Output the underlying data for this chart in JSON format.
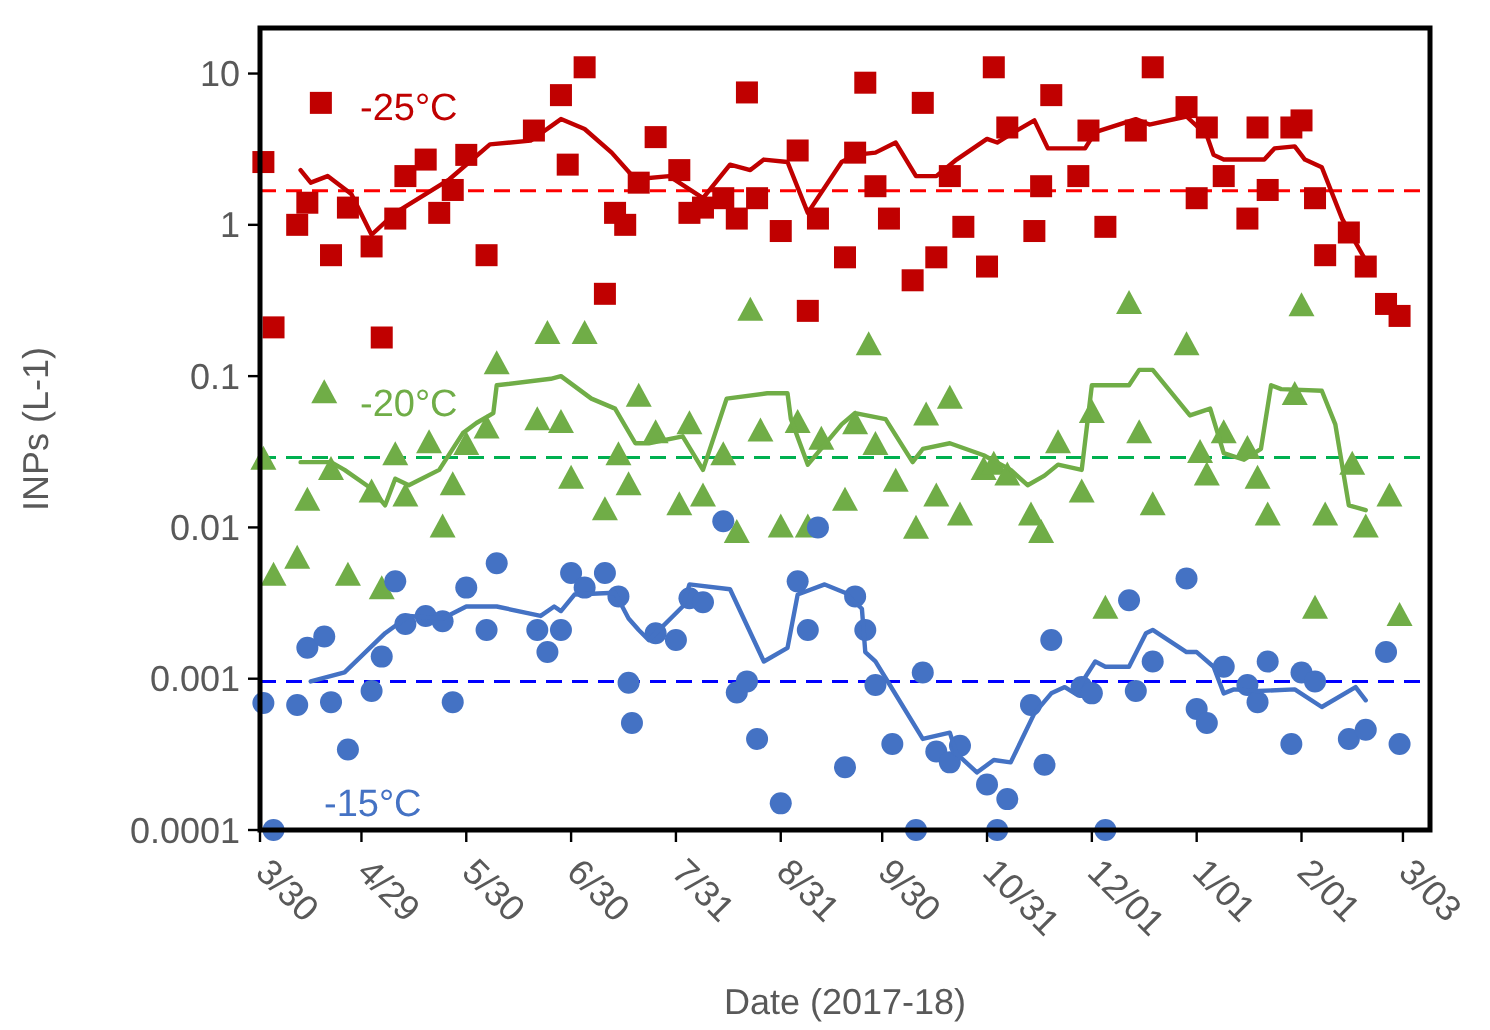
{
  "chart_data": {
    "type": "scatter",
    "xlabel": "Date (2017-18)",
    "ylabel": "INPs (L-1)",
    "log": "y",
    "grid": false,
    "xlim": [
      "2017-03-30",
      "2018-03-11"
    ],
    "xticks": [
      {
        "value": "2017-03-30",
        "label": "3/30"
      },
      {
        "value": "2017-04-29",
        "label": "4/29"
      },
      {
        "value": "2017-05-30",
        "label": "5/30"
      },
      {
        "value": "2017-06-30",
        "label": "6/30"
      },
      {
        "value": "2017-07-31",
        "label": "7/31"
      },
      {
        "value": "2017-08-31",
        "label": "8/31"
      },
      {
        "value": "2017-09-30",
        "label": "9/30"
      },
      {
        "value": "2017-10-31",
        "label": "10/31"
      },
      {
        "value": "2017-12-01",
        "label": "12/01"
      },
      {
        "value": "2018-01-01",
        "label": "1/01"
      },
      {
        "value": "2018-02-01",
        "label": "2/01"
      },
      {
        "value": "2018-03-03",
        "label": "3/03"
      }
    ],
    "ylim": [
      0.0001,
      20
    ],
    "yticks": [
      0.0001,
      0.001,
      0.01,
      0.1,
      1,
      10
    ],
    "ref_lines": [
      {
        "axis": "y",
        "value": 1.68,
        "color": "#ff0000",
        "line_style": "dashed"
      },
      {
        "axis": "y",
        "value": 0.029,
        "color": "#00b050",
        "line_style": "dashed"
      },
      {
        "axis": "y",
        "value": 0.00096,
        "color": "#0000ff",
        "line_style": "dashed"
      }
    ],
    "series": [
      {
        "name": "-25°C",
        "marker": "square",
        "color": "#c00000",
        "x": [
          "2017-03-31",
          "2017-04-03",
          "2017-04-10",
          "2017-04-13",
          "2017-04-17",
          "2017-04-20",
          "2017-04-25",
          "2017-05-02",
          "2017-05-05",
          "2017-05-09",
          "2017-05-12",
          "2017-05-18",
          "2017-05-22",
          "2017-05-26",
          "2017-05-30",
          "2017-06-05",
          "2017-06-19",
          "2017-06-27",
          "2017-06-29",
          "2017-07-04",
          "2017-07-10",
          "2017-07-13",
          "2017-07-16",
          "2017-07-20",
          "2017-07-25",
          "2017-08-01",
          "2017-08-04",
          "2017-08-08",
          "2017-08-14",
          "2017-08-18",
          "2017-08-21",
          "2017-08-24",
          "2017-08-31",
          "2017-09-05",
          "2017-09-08",
          "2017-09-11",
          "2017-09-19",
          "2017-09-22",
          "2017-09-25",
          "2017-09-28",
          "2017-10-02",
          "2017-10-09",
          "2017-10-12",
          "2017-10-16",
          "2017-10-20",
          "2017-10-24",
          "2017-10-31",
          "2017-11-02",
          "2017-11-06",
          "2017-11-14",
          "2017-11-16",
          "2017-11-19",
          "2017-11-27",
          "2017-11-30",
          "2017-12-05",
          "2017-12-14",
          "2017-12-19",
          "2017-12-29",
          "2018-01-01",
          "2018-01-04",
          "2018-01-09",
          "2018-01-16",
          "2018-01-19",
          "2018-01-22",
          "2018-01-29",
          "2018-02-01",
          "2018-02-05",
          "2018-02-08",
          "2018-02-15",
          "2018-02-20",
          "2018-02-26",
          "2018-03-02"
        ],
        "values": [
          2.6,
          0.21,
          1.0,
          1.4,
          6.4,
          0.63,
          1.3,
          0.72,
          0.18,
          1.1,
          2.1,
          2.7,
          1.2,
          1.7,
          2.9,
          0.63,
          4.2,
          7.2,
          2.5,
          11,
          0.35,
          1.2,
          1.0,
          1.9,
          3.8,
          2.3,
          1.2,
          1.3,
          1.5,
          1.1,
          7.5,
          1.5,
          0.91,
          3.1,
          0.27,
          1.1,
          0.61,
          3.0,
          8.7,
          1.8,
          1.1,
          0.43,
          6.4,
          0.61,
          2.1,
          0.97,
          0.53,
          11,
          4.4,
          0.91,
          1.8,
          7.2,
          2.1,
          4.2,
          0.97,
          4.2,
          11,
          6.0,
          1.5,
          4.4,
          2.1,
          1.1,
          4.4,
          1.7,
          4.4,
          4.9,
          1.5,
          0.63,
          0.89,
          0.53,
          0.3,
          0.25
        ]
      },
      {
        "type": "line",
        "marker": "none",
        "color": "#c00000",
        "x": [
          "2017-04-11",
          "2017-04-14",
          "2017-04-19",
          "2017-04-26",
          "2017-05-02",
          "2017-05-09",
          "2017-05-25",
          "2017-06-06",
          "2017-06-18",
          "2017-06-27",
          "2017-07-04",
          "2017-07-12",
          "2017-07-19",
          "2017-07-29",
          "2017-08-08",
          "2017-08-16",
          "2017-08-22",
          "2017-08-26",
          "2017-09-02",
          "2017-09-08",
          "2017-09-18",
          "2017-09-22",
          "2017-09-28",
          "2017-10-04",
          "2017-10-10",
          "2017-10-16",
          "2017-10-22",
          "2017-10-31",
          "2017-11-03",
          "2017-11-08",
          "2017-11-14",
          "2017-11-18",
          "2017-11-29",
          "2017-12-02",
          "2017-12-14",
          "2017-12-18",
          "2017-12-29",
          "2018-01-04",
          "2018-01-06",
          "2018-01-09",
          "2018-01-21",
          "2018-01-24",
          "2018-01-30",
          "2018-02-02",
          "2018-02-07",
          "2018-02-13",
          "2018-02-20"
        ],
        "values": [
          2.3,
          1.9,
          2.1,
          1.6,
          0.86,
          1.2,
          2.0,
          3.4,
          3.6,
          5.0,
          4.3,
          3.0,
          2.0,
          2.1,
          1.5,
          2.5,
          2.3,
          2.7,
          2.6,
          1.2,
          2.6,
          2.9,
          3.0,
          3.5,
          2.1,
          2.1,
          2.7,
          3.7,
          3.5,
          4.1,
          4.9,
          3.2,
          3.2,
          4.1,
          5.0,
          4.6,
          5.2,
          3.9,
          2.9,
          2.7,
          2.7,
          3.2,
          3.3,
          2.7,
          2.4,
          1.1,
          0.58
        ]
      },
      {
        "name": "-20°C",
        "marker": "triangle",
        "color": "#70ad47",
        "x": [
          "2017-03-31",
          "2017-04-03",
          "2017-04-10",
          "2017-04-13",
          "2017-04-18",
          "2017-04-20",
          "2017-04-25",
          "2017-05-02",
          "2017-05-05",
          "2017-05-09",
          "2017-05-12",
          "2017-05-19",
          "2017-05-23",
          "2017-05-26",
          "2017-05-30",
          "2017-06-05",
          "2017-06-08",
          "2017-06-20",
          "2017-06-23",
          "2017-06-27",
          "2017-06-30",
          "2017-07-04",
          "2017-07-10",
          "2017-07-14",
          "2017-07-17",
          "2017-07-20",
          "2017-07-25",
          "2017-08-01",
          "2017-08-04",
          "2017-08-08",
          "2017-08-14",
          "2017-08-18",
          "2017-08-22",
          "2017-08-25",
          "2017-08-31",
          "2017-09-05",
          "2017-09-08",
          "2017-09-12",
          "2017-09-19",
          "2017-09-22",
          "2017-09-26",
          "2017-09-28",
          "2017-10-04",
          "2017-10-10",
          "2017-10-13",
          "2017-10-16",
          "2017-10-20",
          "2017-10-23",
          "2017-10-30",
          "2017-11-02",
          "2017-11-06",
          "2017-11-13",
          "2017-11-16",
          "2017-11-21",
          "2017-11-28",
          "2017-12-01",
          "2017-12-05",
          "2017-12-12",
          "2017-12-15",
          "2017-12-19",
          "2017-12-29",
          "2018-01-02",
          "2018-01-04",
          "2018-01-09",
          "2018-01-16",
          "2018-01-19",
          "2018-01-22",
          "2018-01-30",
          "2018-02-01",
          "2018-02-05",
          "2018-02-08",
          "2018-02-16",
          "2018-02-20",
          "2018-02-27",
          "2018-03-02"
        ],
        "values": [
          0.028,
          0.0048,
          0.0062,
          0.015,
          0.077,
          0.024,
          0.0048,
          0.017,
          0.0039,
          0.03,
          0.016,
          0.036,
          0.01,
          0.019,
          0.035,
          0.045,
          0.12,
          0.051,
          0.19,
          0.049,
          0.021,
          0.19,
          0.013,
          0.03,
          0.019,
          0.073,
          0.042,
          0.014,
          0.048,
          0.016,
          0.03,
          0.0092,
          0.27,
          0.043,
          0.01,
          0.049,
          0.01,
          0.038,
          0.015,
          0.048,
          0.16,
          0.035,
          0.02,
          0.0098,
          0.055,
          0.016,
          0.071,
          0.012,
          0.024,
          0.026,
          0.022,
          0.012,
          0.0092,
          0.036,
          0.017,
          0.057,
          0.0029,
          0.3,
          0.042,
          0.014,
          0.16,
          0.031,
          0.022,
          0.042,
          0.033,
          0.021,
          0.012,
          0.075,
          0.29,
          0.0029,
          0.012,
          0.026,
          0.01,
          0.016,
          0.0026
        ]
      },
      {
        "type": "line",
        "marker": "none",
        "color": "#70ad47",
        "x": [
          "2017-04-11",
          "2017-04-20",
          "2017-04-24",
          "2017-05-02",
          "2017-05-06",
          "2017-05-09",
          "2017-05-13",
          "2017-05-22",
          "2017-05-29",
          "2017-06-02",
          "2017-06-07",
          "2017-06-08",
          "2017-06-24",
          "2017-06-27",
          "2017-07-06",
          "2017-07-13",
          "2017-07-19",
          "2017-07-23",
          "2017-08-02",
          "2017-08-08",
          "2017-08-15",
          "2017-08-27",
          "2017-09-02",
          "2017-09-03",
          "2017-09-08",
          "2017-09-18",
          "2017-09-22",
          "2017-10-01",
          "2017-10-09",
          "2017-10-12",
          "2017-10-20",
          "2017-10-30",
          "2017-11-07",
          "2017-11-12",
          "2017-11-17",
          "2017-11-21",
          "2017-11-28",
          "2017-12-01",
          "2017-12-12",
          "2017-12-15",
          "2017-12-19",
          "2017-12-30",
          "2018-01-05",
          "2018-01-09",
          "2018-01-15",
          "2018-01-20",
          "2018-01-23",
          "2018-01-26",
          "2018-02-07",
          "2018-02-11",
          "2018-02-15",
          "2018-02-20"
        ],
        "values": [
          0.027,
          0.027,
          0.024,
          0.018,
          0.014,
          0.021,
          0.019,
          0.024,
          0.042,
          0.049,
          0.057,
          0.087,
          0.096,
          0.1,
          0.071,
          0.061,
          0.036,
          0.036,
          0.04,
          0.024,
          0.071,
          0.077,
          0.077,
          0.052,
          0.026,
          0.048,
          0.057,
          0.052,
          0.027,
          0.033,
          0.036,
          0.03,
          0.024,
          0.019,
          0.022,
          0.026,
          0.024,
          0.087,
          0.087,
          0.11,
          0.11,
          0.055,
          0.061,
          0.031,
          0.028,
          0.033,
          0.087,
          0.082,
          0.08,
          0.048,
          0.014,
          0.013
        ]
      },
      {
        "name": "-15°C",
        "marker": "circle",
        "color": "#4472c4",
        "x": [
          "2017-03-31",
          "2017-04-03",
          "2017-04-10",
          "2017-04-13",
          "2017-04-18",
          "2017-04-20",
          "2017-04-25",
          "2017-05-02",
          "2017-05-05",
          "2017-05-09",
          "2017-05-12",
          "2017-05-18",
          "2017-05-23",
          "2017-05-26",
          "2017-05-30",
          "2017-06-05",
          "2017-06-08",
          "2017-06-20",
          "2017-06-23",
          "2017-06-27",
          "2017-06-30",
          "2017-07-04",
          "2017-07-10",
          "2017-07-14",
          "2017-07-17",
          "2017-07-18",
          "2017-07-25",
          "2017-07-31",
          "2017-08-04",
          "2017-08-08",
          "2017-08-14",
          "2017-08-18",
          "2017-08-21",
          "2017-08-24",
          "2017-08-31",
          "2017-09-05",
          "2017-09-08",
          "2017-09-11",
          "2017-09-19",
          "2017-09-22",
          "2017-09-25",
          "2017-09-28",
          "2017-10-03",
          "2017-10-10",
          "2017-10-12",
          "2017-10-16",
          "2017-10-20",
          "2017-10-23",
          "2017-10-31",
          "2017-11-03",
          "2017-11-06",
          "2017-11-13",
          "2017-11-17",
          "2017-11-19",
          "2017-11-28",
          "2017-12-01",
          "2017-12-05",
          "2017-12-12",
          "2017-12-14",
          "2017-12-19",
          "2017-12-29",
          "2018-01-01",
          "2018-01-04",
          "2018-01-09",
          "2018-01-16",
          "2018-01-19",
          "2018-01-22",
          "2018-01-29",
          "2018-02-01",
          "2018-02-05",
          "2018-02-15",
          "2018-02-20",
          "2018-02-26",
          "2018-03-02"
        ],
        "values": [
          0.00069,
          0.0001,
          0.00067,
          0.0016,
          0.0019,
          0.0007,
          0.00034,
          0.00083,
          0.0014,
          0.0044,
          0.0023,
          0.0026,
          0.0024,
          0.0007,
          0.004,
          0.0021,
          0.0058,
          0.0021,
          0.0015,
          0.0021,
          0.005,
          0.004,
          0.005,
          0.0035,
          0.00094,
          0.00051,
          0.002,
          0.0018,
          0.0034,
          0.0032,
          0.011,
          0.00081,
          0.00096,
          0.0004,
          0.00015,
          0.0044,
          0.0021,
          0.01,
          0.00026,
          0.0035,
          0.0021,
          0.00091,
          0.00037,
          0.0001,
          0.0011,
          0.00033,
          0.00028,
          0.00036,
          0.0002,
          0.0001,
          0.00016,
          0.00067,
          0.00027,
          0.0018,
          0.00088,
          0.0008,
          0.0001,
          0.0033,
          0.00083,
          0.0013,
          0.0046,
          0.00063,
          0.00051,
          0.0012,
          0.00091,
          0.0007,
          0.0013,
          0.00037,
          0.0011,
          0.00096,
          0.0004,
          0.00046,
          0.0015,
          0.00037
        ]
      },
      {
        "type": "line",
        "marker": "none",
        "color": "#4472c4",
        "x": [
          "2017-04-14",
          "2017-04-24",
          "2017-05-06",
          "2017-05-13",
          "2017-05-23",
          "2017-05-30",
          "2017-06-08",
          "2017-06-21",
          "2017-06-25",
          "2017-06-27",
          "2017-07-01",
          "2017-07-13",
          "2017-07-17",
          "2017-07-20",
          "2017-07-23",
          "2017-08-02",
          "2017-08-04",
          "2017-08-16",
          "2017-08-26",
          "2017-09-02",
          "2017-09-05",
          "2017-09-13",
          "2017-09-19",
          "2017-09-24",
          "2017-09-25",
          "2017-09-28",
          "2017-10-02",
          "2017-10-12",
          "2017-10-20",
          "2017-10-22",
          "2017-10-28",
          "2017-11-02",
          "2017-11-07",
          "2017-11-14",
          "2017-11-19",
          "2017-11-23",
          "2017-11-26",
          "2017-12-02",
          "2017-12-05",
          "2017-12-12",
          "2017-12-17",
          "2017-12-19",
          "2017-12-29",
          "2018-01-01",
          "2018-01-06",
          "2018-01-09",
          "2018-01-12",
          "2018-01-19",
          "2018-01-30",
          "2018-02-07",
          "2018-02-17",
          "2018-02-20"
        ],
        "values": [
          0.00096,
          0.0011,
          0.002,
          0.0026,
          0.0025,
          0.003,
          0.003,
          0.0026,
          0.003,
          0.0028,
          0.0036,
          0.0037,
          0.0025,
          0.0021,
          0.0018,
          0.003,
          0.0042,
          0.0039,
          0.0013,
          0.0016,
          0.0036,
          0.0042,
          0.0037,
          0.0029,
          0.0015,
          0.0013,
          0.00093,
          0.0004,
          0.00044,
          0.00032,
          0.00024,
          0.00029,
          0.00028,
          0.00059,
          0.0008,
          0.00088,
          0.0008,
          0.0013,
          0.0012,
          0.0012,
          0.002,
          0.0021,
          0.0015,
          0.0015,
          0.0012,
          0.0008,
          0.00085,
          0.00083,
          0.00085,
          0.00065,
          0.00088,
          0.00072
        ]
      }
    ]
  }
}
